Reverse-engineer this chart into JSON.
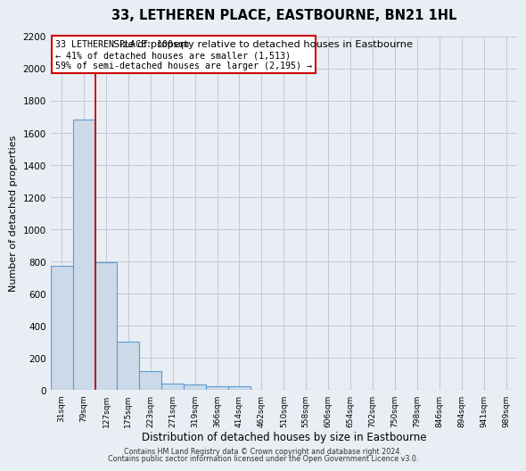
{
  "title": "33, LETHEREN PLACE, EASTBOURNE, BN21 1HL",
  "subtitle": "Size of property relative to detached houses in Eastbourne",
  "xlabel": "Distribution of detached houses by size in Eastbourne",
  "ylabel": "Number of detached properties",
  "bar_labels": [
    "31sqm",
    "79sqm",
    "127sqm",
    "175sqm",
    "223sqm",
    "271sqm",
    "319sqm",
    "366sqm",
    "414sqm",
    "462sqm",
    "510sqm",
    "558sqm",
    "606sqm",
    "654sqm",
    "702sqm",
    "750sqm",
    "798sqm",
    "846sqm",
    "894sqm",
    "941sqm",
    "989sqm"
  ],
  "bar_values": [
    770,
    1680,
    795,
    298,
    113,
    38,
    30,
    20,
    18,
    0,
    0,
    0,
    0,
    0,
    0,
    0,
    0,
    0,
    0,
    0,
    0
  ],
  "bar_color": "#ccd9e8",
  "bar_edge_color": "#5b9bd5",
  "bar_edge_width": 0.8,
  "red_line_x": 1.5,
  "red_line_color": "#cc0000",
  "annotation_line1": "33 LETHEREN PLACE: 100sqm",
  "annotation_line2": "← 41% of detached houses are smaller (1,513)",
  "annotation_line3": "59% of semi-detached houses are larger (2,195) →",
  "ylim": [
    0,
    2200
  ],
  "yticks": [
    0,
    200,
    400,
    600,
    800,
    1000,
    1200,
    1400,
    1600,
    1800,
    2000,
    2200
  ],
  "grid_color": "#c0c8d8",
  "background_color": "#e8eef4",
  "footer_line1": "Contains HM Land Registry data © Crown copyright and database right 2024.",
  "footer_line2": "Contains public sector information licensed under the Open Government Licence v3.0."
}
